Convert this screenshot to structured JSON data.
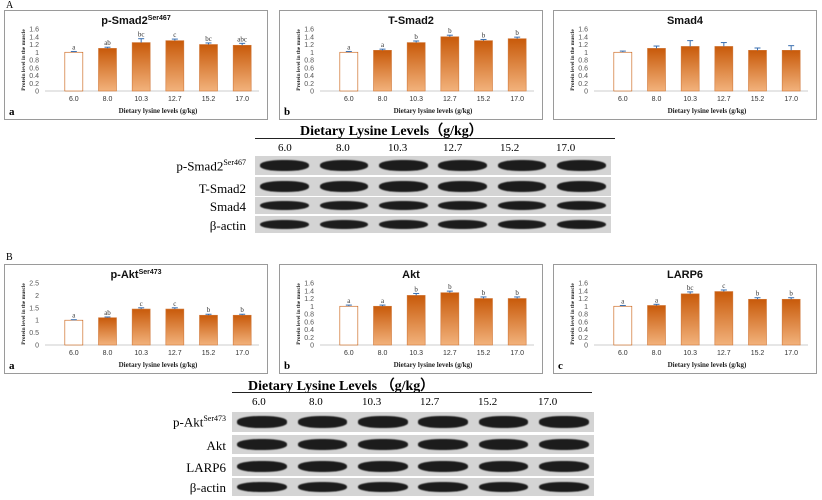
{
  "panel_labels": {
    "A": "A",
    "B": "B"
  },
  "colors": {
    "bar_start": "#ffffff",
    "bar_end": "#c85a0a",
    "error": "#3a6fb0",
    "axis": "#888888"
  },
  "chart_data": [
    {
      "id": "A-a",
      "type": "bar",
      "title": "p-Smad2",
      "title_sup": "Ser467",
      "sub_letter": "a",
      "xlabel": "Dietary lysine levels (g/kg)",
      "ylabel": "Protein level in the muscle",
      "categories": [
        "6.0",
        "8.0",
        "10.3",
        "12.7",
        "15.2",
        "17.0"
      ],
      "values": [
        1.0,
        1.1,
        1.25,
        1.3,
        1.2,
        1.18
      ],
      "errors": [
        0.02,
        0.03,
        0.1,
        0.04,
        0.04,
        0.05
      ],
      "labels": [
        "a",
        "ab",
        "bc",
        "c",
        "bc",
        "abc"
      ],
      "yticks": [
        0,
        0.2,
        0.4,
        0.6,
        0.8,
        1,
        1.2,
        1.4,
        1.6
      ],
      "ylim": [
        0,
        1.6
      ]
    },
    {
      "id": "A-b",
      "type": "bar",
      "title": "T-Smad2",
      "sub_letter": "b",
      "xlabel": "Dietary lysine levels (g/kg)",
      "ylabel": "Protein level in the muscle",
      "categories": [
        "6.0",
        "8.0",
        "10.3",
        "12.7",
        "15.2",
        "17.0"
      ],
      "values": [
        1.0,
        1.05,
        1.25,
        1.4,
        1.3,
        1.35
      ],
      "errors": [
        0.02,
        0.03,
        0.04,
        0.04,
        0.03,
        0.04
      ],
      "labels": [
        "a",
        "a",
        "b",
        "b",
        "b",
        "b"
      ],
      "yticks": [
        0,
        0.2,
        0.4,
        0.6,
        0.8,
        1,
        1.2,
        1.4,
        1.6
      ],
      "ylim": [
        0,
        1.6
      ]
    },
    {
      "id": "A-c",
      "type": "bar",
      "title": "Smad4",
      "sub_letter": "",
      "xlabel": "Dietary lysine levels (g/kg)",
      "ylabel": "Protein level in the muscle",
      "categories": [
        "6.0",
        "8.0",
        "10.3",
        "12.7",
        "15.2",
        "17.0"
      ],
      "values": [
        1.0,
        1.1,
        1.15,
        1.15,
        1.05,
        1.05
      ],
      "errors": [
        0.03,
        0.06,
        0.15,
        0.1,
        0.06,
        0.12
      ],
      "labels": [
        "",
        "",
        "",
        "",
        "",
        ""
      ],
      "yticks": [
        0,
        0.2,
        0.4,
        0.6,
        0.8,
        1,
        1.2,
        1.4,
        1.6
      ],
      "ylim": [
        0,
        1.6
      ]
    },
    {
      "id": "B-a",
      "type": "bar",
      "title": "p-Akt",
      "title_sup": "Ser473",
      "sub_letter": "a",
      "xlabel": "Dietary lysine levels (g/kg)",
      "ylabel": "Protein level in the muscle",
      "categories": [
        "6.0",
        "8.0",
        "10.3",
        "12.7",
        "15.2",
        "17.0"
      ],
      "values": [
        1.0,
        1.1,
        1.45,
        1.45,
        1.2,
        1.2
      ],
      "errors": [
        0.02,
        0.03,
        0.05,
        0.05,
        0.04,
        0.04
      ],
      "labels": [
        "a",
        "ab",
        "c",
        "c",
        "b",
        "b"
      ],
      "yticks": [
        0,
        0.5,
        1,
        1.5,
        2,
        2.5
      ],
      "ylim": [
        0,
        2.5
      ]
    },
    {
      "id": "B-b",
      "type": "bar",
      "title": "Akt",
      "sub_letter": "b",
      "xlabel": "Dietary lysine levels (g/kg)",
      "ylabel": "Protein level in the muscle",
      "categories": [
        "6.0",
        "8.0",
        "10.3",
        "12.7",
        "15.2",
        "17.0"
      ],
      "values": [
        1.0,
        1.0,
        1.28,
        1.35,
        1.2,
        1.2
      ],
      "errors": [
        0.03,
        0.03,
        0.05,
        0.04,
        0.04,
        0.04
      ],
      "labels": [
        "a",
        "a",
        "b",
        "b",
        "b",
        "b"
      ],
      "yticks": [
        0,
        0.2,
        0.4,
        0.6,
        0.8,
        1,
        1.2,
        1.4,
        1.6
      ],
      "ylim": [
        0,
        1.6
      ]
    },
    {
      "id": "B-c",
      "type": "bar",
      "title": "LARP6",
      "sub_letter": "c",
      "xlabel": "Dietary lysine levels (g/kg)",
      "ylabel": "Protein level in the muscle",
      "categories": [
        "6.0",
        "8.0",
        "10.3",
        "12.7",
        "15.2",
        "17.0"
      ],
      "values": [
        1.0,
        1.02,
        1.32,
        1.38,
        1.18,
        1.18
      ],
      "errors": [
        0.02,
        0.03,
        0.05,
        0.04,
        0.04,
        0.04
      ],
      "labels": [
        "a",
        "a",
        "bc",
        "c",
        "b",
        "b"
      ],
      "yticks": [
        0,
        0.2,
        0.4,
        0.6,
        0.8,
        1,
        1.2,
        1.4,
        1.6
      ],
      "ylim": [
        0,
        1.6
      ]
    }
  ],
  "blots": [
    {
      "id": "A",
      "header": "Dietary Lysine Levels（g/kg）",
      "lanes": [
        "6.0",
        "8.0",
        "10.3",
        "12.7",
        "15.2",
        "17.0"
      ],
      "rows": [
        {
          "label": "p-Smad2",
          "sup": "Ser467"
        },
        {
          "label": "T-Smad2",
          "sup": ""
        },
        {
          "label": "Smad4",
          "sup": ""
        },
        {
          "label": "β-actin",
          "sup": ""
        }
      ]
    },
    {
      "id": "B",
      "header": "Dietary Lysine Levels （g/kg）",
      "lanes": [
        "6.0",
        "8.0",
        "10.3",
        "12.7",
        "15.2",
        "17.0"
      ],
      "rows": [
        {
          "label": "p-Akt",
          "sup": "Ser473"
        },
        {
          "label": "Akt",
          "sup": ""
        },
        {
          "label": "LARP6",
          "sup": ""
        },
        {
          "label": "β-actin",
          "sup": ""
        }
      ]
    }
  ]
}
